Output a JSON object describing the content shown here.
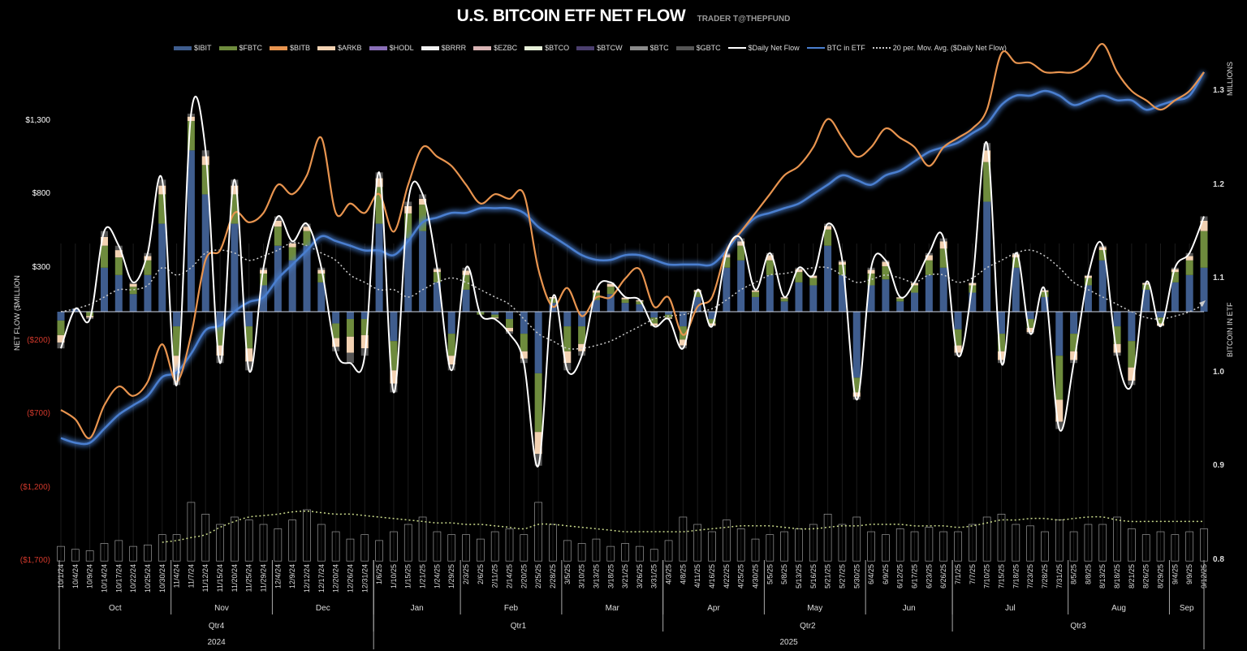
{
  "title": "U.S. BITCOIN ETF NET FLOW",
  "subtitle": "TRADER T@THEPFUND",
  "legend": [
    {
      "label": "$IBIT",
      "color": "#3f5d8e",
      "kind": "bar"
    },
    {
      "label": "$FBTC",
      "color": "#6e8b3d",
      "kind": "bar"
    },
    {
      "label": "$BITB",
      "color": "#e8944f",
      "kind": "bar"
    },
    {
      "label": "$ARKB",
      "color": "#f3d2b2",
      "kind": "bar"
    },
    {
      "label": "$HODL",
      "color": "#8a6fb8",
      "kind": "bar"
    },
    {
      "label": "$BRRR",
      "color": "#f2f2f2",
      "kind": "bar"
    },
    {
      "label": "$EZBC",
      "color": "#d8b4b4",
      "kind": "bar"
    },
    {
      "label": "$BTCO",
      "color": "#e6efd8",
      "kind": "bar"
    },
    {
      "label": "$BTCW",
      "color": "#4b3f6e",
      "kind": "bar"
    },
    {
      "label": "$BTC",
      "color": "#8a8a8a",
      "kind": "bar"
    },
    {
      "label": "$GBTC",
      "color": "#555555",
      "kind": "bar"
    },
    {
      "label": "$Daily Net Flow",
      "color": "#ffffff",
      "kind": "line"
    },
    {
      "label": "BTC in ETF",
      "color": "#4a7fd0",
      "kind": "line"
    },
    {
      "label": "20 per. Mov. Avg. ($Daily Net Flow)",
      "color": "#cccccc",
      "kind": "dotted"
    }
  ],
  "chart_data": {
    "type": "bar",
    "title": "U.S. BITCOIN ETF NET FLOW",
    "ylabel": "NET FLOW ($MILLION",
    "ylabel_right": "BITCOIN IN ETF",
    "ylabel_right_unit": "MILLIONS",
    "ylim": [
      -1700,
      1300
    ],
    "ylim_right": [
      0.8,
      1.3
    ],
    "yticks": [
      "$1,300",
      "$800",
      "$300",
      "($200)",
      "($700)",
      "($1,200)",
      "($1,700)"
    ],
    "yticks_right": [
      "1.3",
      "1.2",
      "1.1",
      "1.0",
      "0.9",
      "0.8"
    ],
    "negative_tick_color": "#d0382b",
    "grid": false,
    "legend_position": "top",
    "x": [
      "10/1/24",
      "10/4/24",
      "10/9/24",
      "10/14/24",
      "10/17/24",
      "10/22/24",
      "10/25/24",
      "10/30/24",
      "11/4/24",
      "11/7/24",
      "11/12/24",
      "11/15/24",
      "11/20/24",
      "11/25/24",
      "11/29/24",
      "12/4/24",
      "12/9/24",
      "12/12/24",
      "12/17/24",
      "12/20/24",
      "12/26/24",
      "12/31/24",
      "1/6/25",
      "1/10/25",
      "1/15/25",
      "1/21/25",
      "1/24/25",
      "1/29/25",
      "2/3/25",
      "2/6/25",
      "2/11/25",
      "2/14/25",
      "2/20/25",
      "2/25/25",
      "2/28/25",
      "3/5/25",
      "3/10/25",
      "3/13/25",
      "3/18/25",
      "3/21/25",
      "3/26/25",
      "3/31/25",
      "4/3/25",
      "4/8/25",
      "4/11/25",
      "4/16/25",
      "4/22/25",
      "4/25/25",
      "4/30/25",
      "5/5/25",
      "5/8/25",
      "5/13/25",
      "5/16/25",
      "5/21/25",
      "5/27/25",
      "5/30/25",
      "6/4/25",
      "6/9/25",
      "6/12/25",
      "6/17/25",
      "6/23/25",
      "6/26/25",
      "7/1/25",
      "7/7/25",
      "7/10/25",
      "7/15/25",
      "7/18/25",
      "7/23/25",
      "7/28/25",
      "7/31/25",
      "8/5/25",
      "8/8/25",
      "8/13/25",
      "8/18/25",
      "8/21/25",
      "8/26/25",
      "8/29/25",
      "9/4/25",
      "9/9/25",
      "9/12/25"
    ],
    "months": [
      {
        "label": "Oct",
        "ticks": 8
      },
      {
        "label": "Nov",
        "ticks": 7
      },
      {
        "label": "Dec",
        "ticks": 7
      },
      {
        "label": "Jan",
        "ticks": 6
      },
      {
        "label": "Feb",
        "ticks": 7
      },
      {
        "label": "Mar",
        "ticks": 7
      },
      {
        "label": "Apr",
        "ticks": 7
      },
      {
        "label": "May",
        "ticks": 7
      },
      {
        "label": "Jun",
        "ticks": 6
      },
      {
        "label": "Jul",
        "ticks": 8
      },
      {
        "label": "Aug",
        "ticks": 7
      },
      {
        "label": "Sep",
        "ticks": 3
      }
    ],
    "quarters": [
      {
        "label": "Qtr4",
        "months": 3
      },
      {
        "label": "Qtr1",
        "months": 3
      },
      {
        "label": "Qtr2",
        "months": 3
      },
      {
        "label": "Qtr3",
        "months": 3
      }
    ],
    "years": [
      {
        "label": "2024",
        "quarters": 1
      },
      {
        "label": "2025",
        "quarters": 3
      }
    ],
    "bar_series": [
      {
        "name": "$IBIT",
        "color": "#3f5d8e",
        "values": [
          -60,
          20,
          0,
          300,
          250,
          120,
          250,
          600,
          -100,
          1100,
          800,
          -100,
          600,
          -100,
          180,
          450,
          350,
          450,
          200,
          -80,
          -50,
          -50,
          600,
          -200,
          500,
          550,
          200,
          -150,
          150,
          0,
          -20,
          -50,
          -150,
          -420,
          60,
          -100,
          -100,
          80,
          120,
          60,
          50,
          -40,
          -20,
          -100,
          100,
          -50,
          300,
          350,
          100,
          250,
          70,
          200,
          180,
          450,
          250,
          -450,
          180,
          220,
          70,
          130,
          250,
          300,
          -120,
          130,
          750,
          -150,
          300,
          -50,
          100,
          -300,
          -150,
          180,
          350,
          -100,
          -200,
          150,
          -40,
          200,
          250,
          300
        ]
      },
      {
        "name": "$FBTC",
        "color": "#6e8b3d",
        "values": [
          -100,
          0,
          -30,
          150,
          120,
          50,
          100,
          200,
          -200,
          200,
          200,
          -130,
          200,
          -150,
          80,
          130,
          90,
          100,
          60,
          -100,
          -120,
          -110,
          250,
          -200,
          170,
          180,
          70,
          -150,
          100,
          -20,
          -20,
          -60,
          -120,
          -400,
          30,
          -170,
          -120,
          50,
          50,
          25,
          20,
          -40,
          -20,
          -90,
          35,
          -30,
          70,
          100,
          35,
          100,
          20,
          70,
          50,
          110,
          70,
          -100,
          80,
          90,
          20,
          50,
          100,
          130,
          -110,
          50,
          270,
          -120,
          70,
          -60,
          35,
          -300,
          -120,
          50,
          70,
          -120,
          -180,
          35,
          -40,
          70,
          100,
          250
        ]
      },
      {
        "name": "$ARKB",
        "color": "#f3d2b2",
        "values": [
          -50,
          0,
          -10,
          60,
          50,
          20,
          30,
          60,
          -120,
          30,
          60,
          -70,
          60,
          -90,
          25,
          40,
          25,
          30,
          25,
          -60,
          -110,
          -90,
          60,
          -90,
          50,
          40,
          20,
          -60,
          30,
          0,
          -5,
          -25,
          -50,
          -150,
          10,
          -80,
          -50,
          15,
          20,
          10,
          8,
          -15,
          -8,
          -40,
          12,
          -15,
          20,
          30,
          10,
          35,
          8,
          20,
          15,
          25,
          20,
          -30,
          25,
          30,
          8,
          15,
          35,
          50,
          -50,
          15,
          80,
          -60,
          20,
          -30,
          10,
          -150,
          -60,
          15,
          20,
          -60,
          -90,
          10,
          -15,
          20,
          30,
          70
        ]
      },
      {
        "name": "$GBTC",
        "color": "#555555",
        "values": [
          -40,
          0,
          -10,
          40,
          30,
          10,
          20,
          40,
          -80,
          20,
          40,
          -50,
          40,
          -60,
          15,
          30,
          15,
          20,
          15,
          -30,
          -70,
          -50,
          40,
          -60,
          30,
          30,
          10,
          -40,
          20,
          0,
          -5,
          -15,
          -30,
          -80,
          0,
          -50,
          -30,
          5,
          10,
          5,
          2,
          -5,
          -2,
          -20,
          3,
          -5,
          10,
          20,
          5,
          15,
          2,
          10,
          5,
          15,
          10,
          -20,
          15,
          10,
          2,
          5,
          15,
          20,
          -20,
          5,
          50,
          -20,
          10,
          -10,
          5,
          -50,
          -20,
          5,
          10,
          -20,
          -30,
          5,
          -5,
          10,
          20,
          30
        ]
      }
    ],
    "daily_net_flow": {
      "name": "$Daily Net Flow",
      "color": "#ffffff",
      "values": [
        -250,
        20,
        -50,
        550,
        450,
        200,
        400,
        900,
        -500,
        1350,
        1100,
        -350,
        900,
        -400,
        300,
        650,
        480,
        600,
        300,
        -270,
        -350,
        -300,
        950,
        -550,
        750,
        800,
        300,
        -400,
        300,
        -20,
        -50,
        -150,
        -350,
        -1050,
        100,
        -400,
        -300,
        150,
        200,
        100,
        80,
        -100,
        -50,
        -250,
        150,
        -100,
        400,
        500,
        150,
        400,
        100,
        300,
        250,
        600,
        350,
        -600,
        300,
        350,
        100,
        200,
        400,
        500,
        -300,
        200,
        1150,
        -350,
        400,
        -150,
        150,
        -800,
        -350,
        250,
        450,
        -300,
        -500,
        200,
        -100,
        300,
        400,
        650
      ]
    },
    "moving_avg": {
      "name": "20 per. Mov. Avg. ($Daily Net Flow)",
      "color": "#cccccc",
      "values": [
        0,
        20,
        50,
        100,
        150,
        150,
        180,
        300,
        250,
        300,
        400,
        420,
        400,
        350,
        380,
        420,
        470,
        450,
        400,
        350,
        250,
        200,
        150,
        150,
        100,
        150,
        200,
        230,
        200,
        150,
        100,
        50,
        -50,
        -150,
        -200,
        -250,
        -250,
        -230,
        -200,
        -150,
        -100,
        -50,
        -30,
        -20,
        0,
        20,
        80,
        150,
        200,
        250,
        260,
        280,
        300,
        300,
        250,
        200,
        220,
        250,
        230,
        200,
        250,
        250,
        200,
        230,
        300,
        350,
        400,
        420,
        380,
        300,
        200,
        150,
        100,
        50,
        0,
        -40,
        -50,
        -30,
        0,
        50
      ]
    },
    "btc_in_etf": {
      "name": "BTC in ETF",
      "color": "#4a7fd0",
      "axis": "right",
      "values": [
        0.93,
        0.925,
        0.925,
        0.94,
        0.955,
        0.965,
        0.975,
        0.995,
        1.0,
        1.02,
        1.045,
        1.05,
        1.065,
        1.075,
        1.08,
        1.1,
        1.115,
        1.13,
        1.145,
        1.14,
        1.135,
        1.13,
        1.13,
        1.125,
        1.14,
        1.16,
        1.165,
        1.17,
        1.17,
        1.175,
        1.175,
        1.175,
        1.17,
        1.155,
        1.145,
        1.135,
        1.125,
        1.12,
        1.12,
        1.125,
        1.125,
        1.12,
        1.115,
        1.115,
        1.115,
        1.115,
        1.13,
        1.15,
        1.165,
        1.17,
        1.175,
        1.18,
        1.19,
        1.2,
        1.21,
        1.205,
        1.2,
        1.21,
        1.215,
        1.225,
        1.235,
        1.24,
        1.245,
        1.255,
        1.265,
        1.285,
        1.295,
        1.295,
        1.3,
        1.295,
        1.285,
        1.29,
        1.295,
        1.29,
        1.29,
        1.28,
        1.285,
        1.29,
        1.295,
        1.32
      ]
    },
    "orange_line": {
      "color": "#e8944f",
      "axis": "right",
      "values": [
        0.96,
        0.95,
        0.93,
        0.965,
        0.985,
        0.975,
        0.99,
        1.03,
        0.99,
        1.04,
        1.12,
        1.13,
        1.17,
        1.16,
        1.17,
        1.2,
        1.19,
        1.21,
        1.25,
        1.17,
        1.18,
        1.17,
        1.19,
        1.15,
        1.2,
        1.24,
        1.23,
        1.22,
        1.2,
        1.18,
        1.19,
        1.185,
        1.19,
        1.11,
        1.07,
        1.09,
        1.06,
        1.08,
        1.08,
        1.1,
        1.11,
        1.07,
        1.08,
        1.04,
        1.07,
        1.08,
        1.13,
        1.15,
        1.17,
        1.19,
        1.21,
        1.22,
        1.24,
        1.27,
        1.25,
        1.23,
        1.24,
        1.26,
        1.25,
        1.24,
        1.22,
        1.24,
        1.25,
        1.26,
        1.28,
        1.34,
        1.33,
        1.33,
        1.32,
        1.32,
        1.32,
        1.33,
        1.35,
        1.32,
        1.3,
        1.29,
        1.28,
        1.29,
        1.3,
        1.32
      ]
    },
    "bottom_bars": {
      "color": "#9a9a9a",
      "values": [
        -1600,
        -1620,
        -1630,
        -1580,
        -1560,
        -1600,
        -1590,
        -1520,
        -1520,
        -1300,
        -1380,
        -1450,
        -1400,
        -1420,
        -1450,
        -1480,
        -1420,
        -1350,
        -1450,
        -1500,
        -1550,
        -1520,
        -1560,
        -1500,
        -1450,
        -1400,
        -1500,
        -1520,
        -1520,
        -1550,
        -1500,
        -1480,
        -1520,
        -1300,
        -1450,
        -1560,
        -1580,
        -1550,
        -1600,
        -1580,
        -1600,
        -1620,
        -1560,
        -1400,
        -1450,
        -1500,
        -1420,
        -1480,
        -1550,
        -1520,
        -1500,
        -1480,
        -1450,
        -1380,
        -1450,
        -1400,
        -1500,
        -1520,
        -1480,
        -1500,
        -1470,
        -1500,
        -1500,
        -1450,
        -1400,
        -1380,
        -1450,
        -1460,
        -1500,
        -1420,
        -1500,
        -1450,
        -1450,
        -1400,
        -1480,
        -1520,
        -1500,
        -1520,
        -1500,
        -1480
      ]
    },
    "bottom_avg": {
      "color": "#c8d88a",
      "values": [
        null,
        null,
        null,
        null,
        null,
        null,
        null,
        -1572,
        -1560,
        -1540,
        -1520,
        -1470,
        -1430,
        -1400,
        -1390,
        -1380,
        -1365,
        -1360,
        -1370,
        -1380,
        -1380,
        -1390,
        -1400,
        -1410,
        -1420,
        -1430,
        -1440,
        -1440,
        -1450,
        -1450,
        -1460,
        -1470,
        -1480,
        -1450,
        -1450,
        -1460,
        -1470,
        -1480,
        -1490,
        -1500,
        -1500,
        -1500,
        -1500,
        -1500,
        -1490,
        -1480,
        -1470,
        -1460,
        -1460,
        -1460,
        -1470,
        -1480,
        -1480,
        -1470,
        -1460,
        -1460,
        -1450,
        -1450,
        -1450,
        -1460,
        -1460,
        -1460,
        -1470,
        -1460,
        -1440,
        -1420,
        -1420,
        -1410,
        -1410,
        -1420,
        -1410,
        -1400,
        -1400,
        -1420,
        -1430,
        -1430,
        -1430,
        -1430,
        -1430,
        -1430
      ]
    }
  }
}
